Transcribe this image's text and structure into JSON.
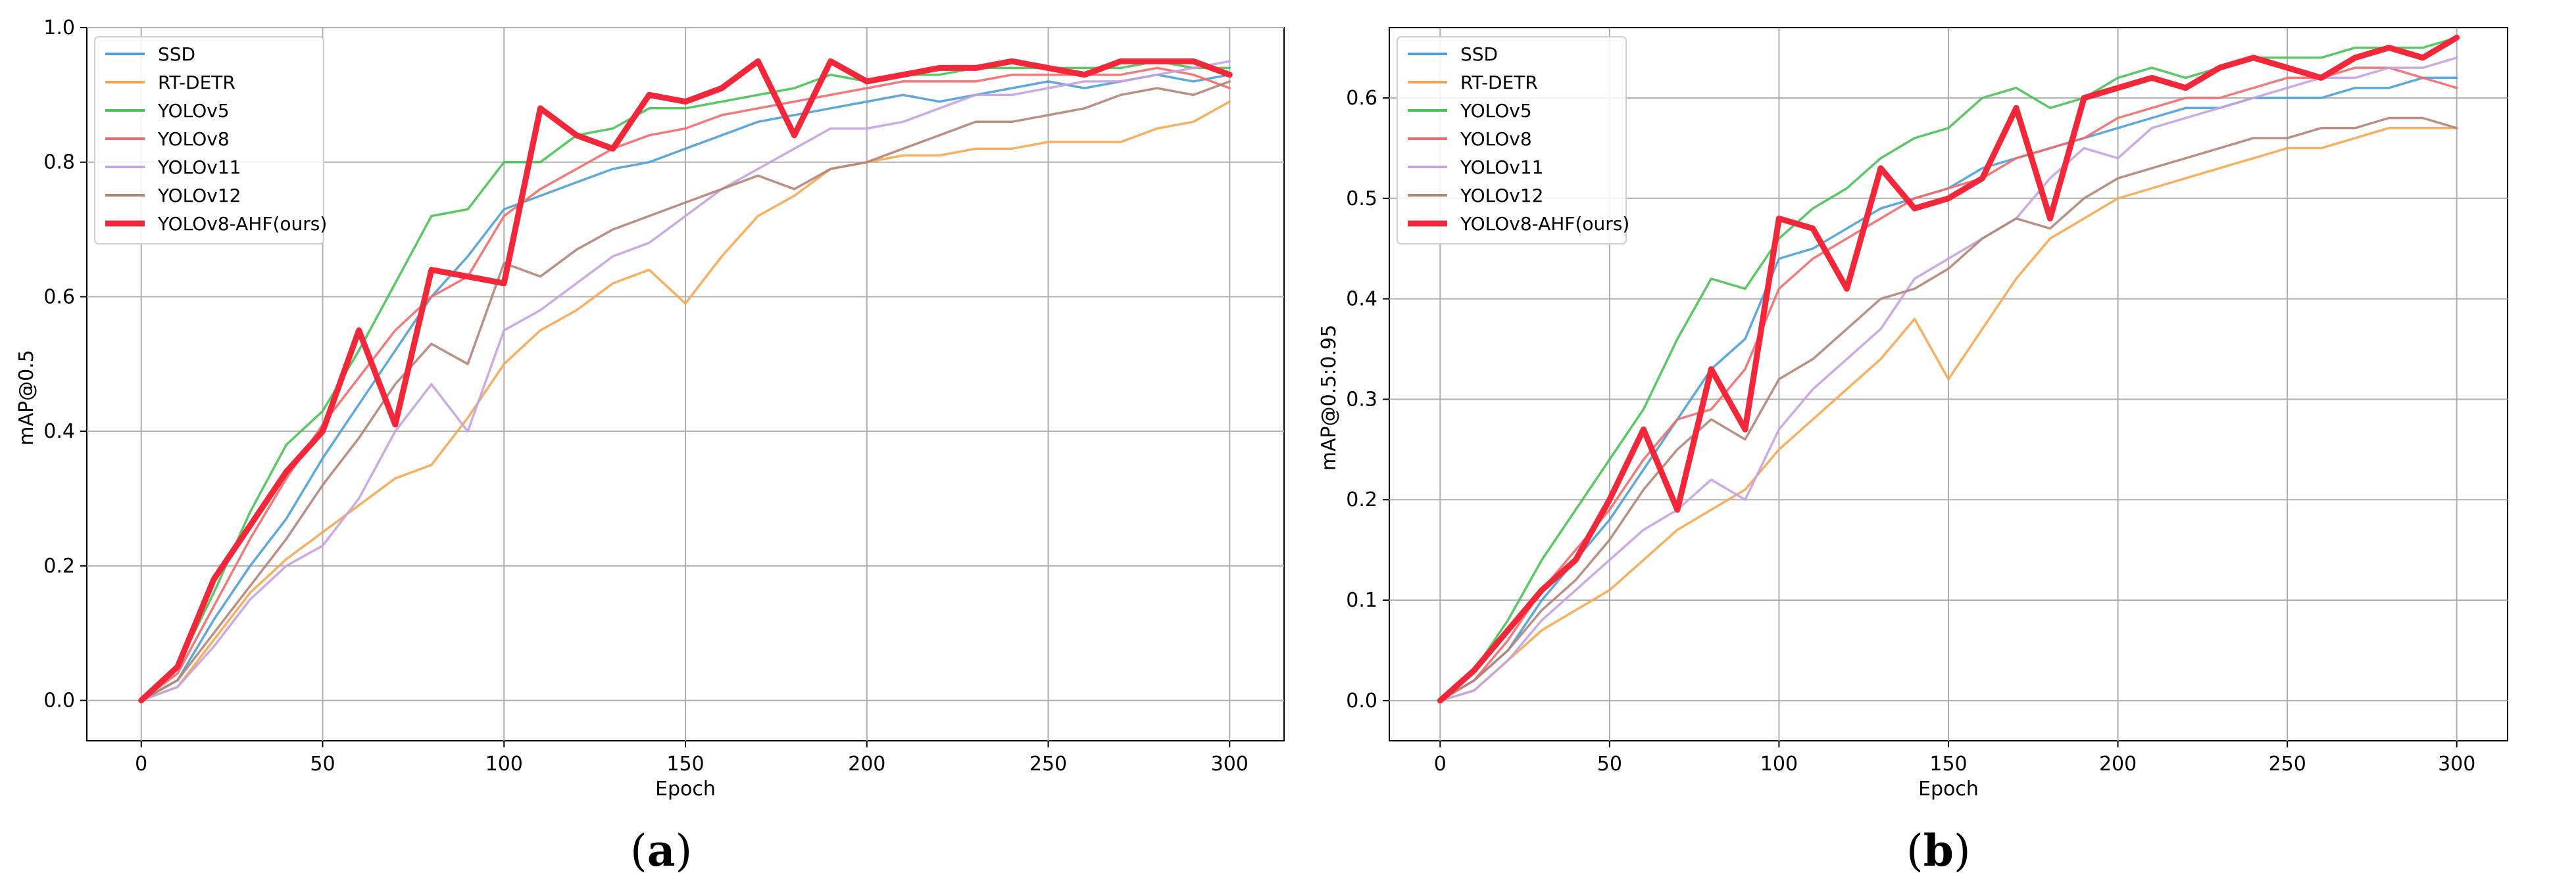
{
  "figure": {
    "colors": {
      "SSD": "#4c9fd8",
      "RT-DETR": "#f6a64f",
      "YOLOv5": "#49c257",
      "YOLOv8": "#f26c6c",
      "YOLOv11": "#c5a2e2",
      "YOLOv12": "#b48476",
      "YOLOv8-AHF(ours)": "#f2283a"
    },
    "captions": {
      "a": "a",
      "b": "b"
    }
  },
  "chart_data": [
    {
      "id": "a",
      "type": "line",
      "title": "",
      "xlabel": "Epoch",
      "ylabel": "mAP@0.5",
      "xlim": [
        -15,
        315
      ],
      "ylim": [
        -0.06,
        1.0
      ],
      "xticks": [
        0,
        50,
        100,
        150,
        200,
        250,
        300
      ],
      "yticks": [
        0.0,
        0.2,
        0.4,
        0.6,
        0.8,
        1.0
      ],
      "ytick_labels": [
        "0.0",
        "0.2",
        "0.4",
        "0.6",
        "0.8",
        "1.0"
      ],
      "grid": true,
      "legend": "top-left",
      "x": [
        0,
        10,
        20,
        30,
        40,
        50,
        60,
        70,
        80,
        90,
        100,
        110,
        120,
        130,
        140,
        150,
        160,
        170,
        180,
        190,
        200,
        210,
        220,
        230,
        240,
        250,
        260,
        270,
        280,
        290,
        300
      ],
      "series": [
        {
          "name": "SSD",
          "values": [
            0,
            0.03,
            0.12,
            0.2,
            0.27,
            0.36,
            0.44,
            0.52,
            0.6,
            0.66,
            0.73,
            0.75,
            0.77,
            0.79,
            0.8,
            0.82,
            0.84,
            0.86,
            0.87,
            0.88,
            0.89,
            0.9,
            0.89,
            0.9,
            0.91,
            0.92,
            0.91,
            0.92,
            0.93,
            0.92,
            0.93
          ]
        },
        {
          "name": "RT-DETR",
          "values": [
            0,
            0.02,
            0.09,
            0.16,
            0.21,
            0.25,
            0.29,
            0.33,
            0.35,
            0.42,
            0.5,
            0.55,
            0.58,
            0.62,
            0.64,
            0.59,
            0.66,
            0.72,
            0.75,
            0.79,
            0.8,
            0.81,
            0.81,
            0.82,
            0.82,
            0.83,
            0.83,
            0.83,
            0.85,
            0.86,
            0.89
          ]
        },
        {
          "name": "YOLOv5",
          "values": [
            0,
            0.05,
            0.16,
            0.28,
            0.38,
            0.43,
            0.52,
            0.62,
            0.72,
            0.73,
            0.8,
            0.8,
            0.84,
            0.85,
            0.88,
            0.88,
            0.89,
            0.9,
            0.91,
            0.93,
            0.92,
            0.93,
            0.93,
            0.94,
            0.94,
            0.94,
            0.94,
            0.94,
            0.95,
            0.94,
            0.94
          ]
        },
        {
          "name": "YOLOv8",
          "values": [
            0,
            0.04,
            0.14,
            0.24,
            0.33,
            0.41,
            0.48,
            0.55,
            0.6,
            0.63,
            0.72,
            0.76,
            0.79,
            0.82,
            0.84,
            0.85,
            0.87,
            0.88,
            0.89,
            0.9,
            0.91,
            0.92,
            0.92,
            0.92,
            0.93,
            0.93,
            0.93,
            0.93,
            0.94,
            0.93,
            0.91
          ]
        },
        {
          "name": "YOLOv11",
          "values": [
            0,
            0.02,
            0.08,
            0.15,
            0.2,
            0.23,
            0.3,
            0.4,
            0.47,
            0.4,
            0.55,
            0.58,
            0.62,
            0.66,
            0.68,
            0.72,
            0.76,
            0.79,
            0.82,
            0.85,
            0.85,
            0.86,
            0.88,
            0.9,
            0.9,
            0.91,
            0.92,
            0.92,
            0.93,
            0.94,
            0.95
          ]
        },
        {
          "name": "YOLOv12",
          "values": [
            0,
            0.03,
            0.1,
            0.17,
            0.24,
            0.32,
            0.39,
            0.47,
            0.53,
            0.5,
            0.65,
            0.63,
            0.67,
            0.7,
            0.72,
            0.74,
            0.76,
            0.78,
            0.76,
            0.79,
            0.8,
            0.82,
            0.84,
            0.86,
            0.86,
            0.87,
            0.88,
            0.9,
            0.91,
            0.9,
            0.92
          ]
        },
        {
          "name": "YOLOv8-AHF(ours)",
          "values": [
            0,
            0.05,
            0.18,
            0.26,
            0.34,
            0.4,
            0.55,
            0.41,
            0.64,
            0.63,
            0.62,
            0.88,
            0.84,
            0.82,
            0.9,
            0.89,
            0.91,
            0.95,
            0.84,
            0.95,
            0.92,
            0.93,
            0.94,
            0.94,
            0.95,
            0.94,
            0.93,
            0.95,
            0.95,
            0.95,
            0.93
          ]
        }
      ]
    },
    {
      "id": "b",
      "type": "line",
      "title": "",
      "xlabel": "Epoch",
      "ylabel": "mAP@0.5:0.95",
      "xlim": [
        -15,
        315
      ],
      "ylim": [
        -0.04,
        0.67
      ],
      "xticks": [
        0,
        50,
        100,
        150,
        200,
        250,
        300
      ],
      "yticks": [
        0.0,
        0.1,
        0.2,
        0.3,
        0.4,
        0.5,
        0.6
      ],
      "ytick_labels": [
        "0.0",
        "0.1",
        "0.2",
        "0.3",
        "0.4",
        "0.5",
        "0.6"
      ],
      "grid": true,
      "legend": "top-left",
      "x": [
        0,
        10,
        20,
        30,
        40,
        50,
        60,
        70,
        80,
        90,
        100,
        110,
        120,
        130,
        140,
        150,
        160,
        170,
        180,
        190,
        200,
        210,
        220,
        230,
        240,
        250,
        260,
        270,
        280,
        290,
        300
      ],
      "series": [
        {
          "name": "SSD",
          "values": [
            0,
            0.02,
            0.05,
            0.1,
            0.14,
            0.18,
            0.23,
            0.28,
            0.33,
            0.36,
            0.44,
            0.45,
            0.47,
            0.49,
            0.5,
            0.51,
            0.53,
            0.54,
            0.55,
            0.56,
            0.57,
            0.58,
            0.59,
            0.59,
            0.6,
            0.6,
            0.6,
            0.61,
            0.61,
            0.62,
            0.62
          ]
        },
        {
          "name": "RT-DETR",
          "values": [
            0,
            0.01,
            0.04,
            0.07,
            0.09,
            0.11,
            0.14,
            0.17,
            0.19,
            0.21,
            0.25,
            0.28,
            0.31,
            0.34,
            0.38,
            0.32,
            0.37,
            0.42,
            0.46,
            0.48,
            0.5,
            0.51,
            0.52,
            0.53,
            0.54,
            0.55,
            0.55,
            0.56,
            0.57,
            0.57,
            0.57
          ]
        },
        {
          "name": "YOLOv5",
          "values": [
            0,
            0.03,
            0.08,
            0.14,
            0.19,
            0.24,
            0.29,
            0.36,
            0.42,
            0.41,
            0.46,
            0.49,
            0.51,
            0.54,
            0.56,
            0.57,
            0.6,
            0.61,
            0.59,
            0.6,
            0.62,
            0.63,
            0.62,
            0.63,
            0.64,
            0.64,
            0.64,
            0.65,
            0.65,
            0.65,
            0.66
          ]
        },
        {
          "name": "YOLOv8",
          "values": [
            0,
            0.02,
            0.06,
            0.11,
            0.15,
            0.19,
            0.24,
            0.28,
            0.29,
            0.33,
            0.41,
            0.44,
            0.46,
            0.48,
            0.5,
            0.51,
            0.52,
            0.54,
            0.55,
            0.56,
            0.58,
            0.59,
            0.6,
            0.6,
            0.61,
            0.62,
            0.62,
            0.63,
            0.63,
            0.62,
            0.61
          ]
        },
        {
          "name": "YOLOv11",
          "values": [
            0,
            0.01,
            0.04,
            0.08,
            0.11,
            0.14,
            0.17,
            0.19,
            0.22,
            0.2,
            0.27,
            0.31,
            0.34,
            0.37,
            0.42,
            0.44,
            0.46,
            0.48,
            0.52,
            0.55,
            0.54,
            0.57,
            0.58,
            0.59,
            0.6,
            0.61,
            0.62,
            0.62,
            0.63,
            0.63,
            0.64
          ]
        },
        {
          "name": "YOLOv12",
          "values": [
            0,
            0.02,
            0.05,
            0.09,
            0.12,
            0.16,
            0.21,
            0.25,
            0.28,
            0.26,
            0.32,
            0.34,
            0.37,
            0.4,
            0.41,
            0.43,
            0.46,
            0.48,
            0.47,
            0.5,
            0.52,
            0.53,
            0.54,
            0.55,
            0.56,
            0.56,
            0.57,
            0.57,
            0.58,
            0.58,
            0.57
          ]
        },
        {
          "name": "YOLOv8-AHF(ours)",
          "values": [
            0,
            0.03,
            0.07,
            0.11,
            0.14,
            0.2,
            0.27,
            0.19,
            0.33,
            0.27,
            0.48,
            0.47,
            0.41,
            0.53,
            0.49,
            0.5,
            0.52,
            0.59,
            0.48,
            0.6,
            0.61,
            0.62,
            0.61,
            0.63,
            0.64,
            0.63,
            0.62,
            0.64,
            0.65,
            0.64,
            0.66
          ]
        }
      ]
    }
  ]
}
